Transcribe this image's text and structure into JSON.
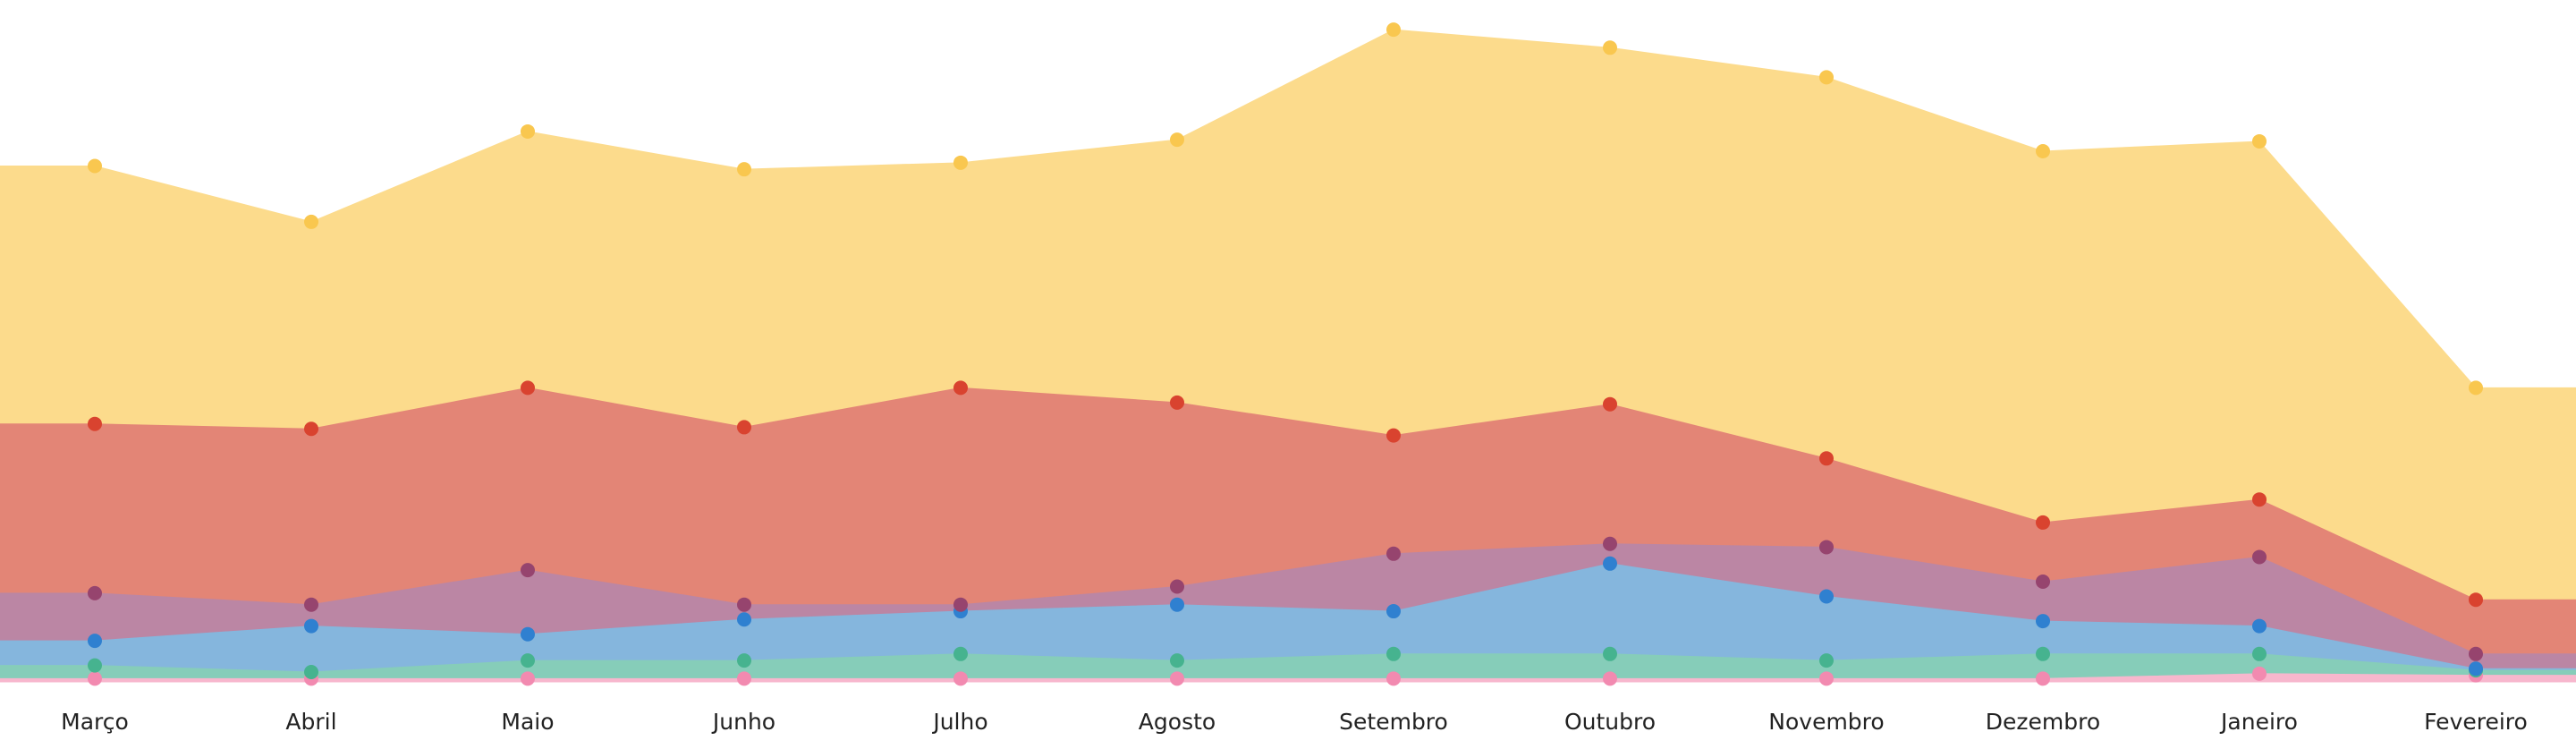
{
  "chart_data": {
    "type": "stacked_area",
    "categories": [
      "Março",
      "Abril",
      "Maio",
      "Junho",
      "Julho",
      "Agosto",
      "Setembro",
      "Outubro",
      "Novembro",
      "Dezembro",
      "Janeiro",
      "Fevereiro"
    ],
    "ylim": [
      0,
      400
    ],
    "series": [
      {
        "color": "#f28ab0",
        "area_color": "#f7b7cd",
        "values": [
          2,
          2,
          2,
          2,
          2,
          2,
          2,
          2,
          2,
          2,
          5,
          4
        ]
      },
      {
        "color": "#46b38f",
        "area_color": "#86cdb9",
        "values": [
          8,
          4,
          11,
          11,
          15,
          11,
          15,
          15,
          11,
          15,
          12,
          3
        ]
      },
      {
        "color": "#2f80d0",
        "area_color": "#85b6dd",
        "values": [
          15,
          28,
          16,
          25,
          26,
          34,
          26,
          55,
          39,
          20,
          17,
          1
        ]
      },
      {
        "color": "#96446e",
        "area_color": "#bb86a4",
        "values": [
          29,
          13,
          39,
          9,
          4,
          11,
          35,
          12,
          30,
          24,
          42,
          9
        ]
      },
      {
        "color": "#d9432f",
        "area_color": "#e38576",
        "values": [
          103,
          107,
          111,
          108,
          132,
          112,
          72,
          85,
          54,
          36,
          35,
          33
        ]
      },
      {
        "color": "#f9c74f",
        "area_color": "#fcdb8c",
        "values": [
          157,
          126,
          156,
          157,
          137,
          160,
          247,
          217,
          232,
          226,
          218,
          129
        ]
      }
    ]
  }
}
